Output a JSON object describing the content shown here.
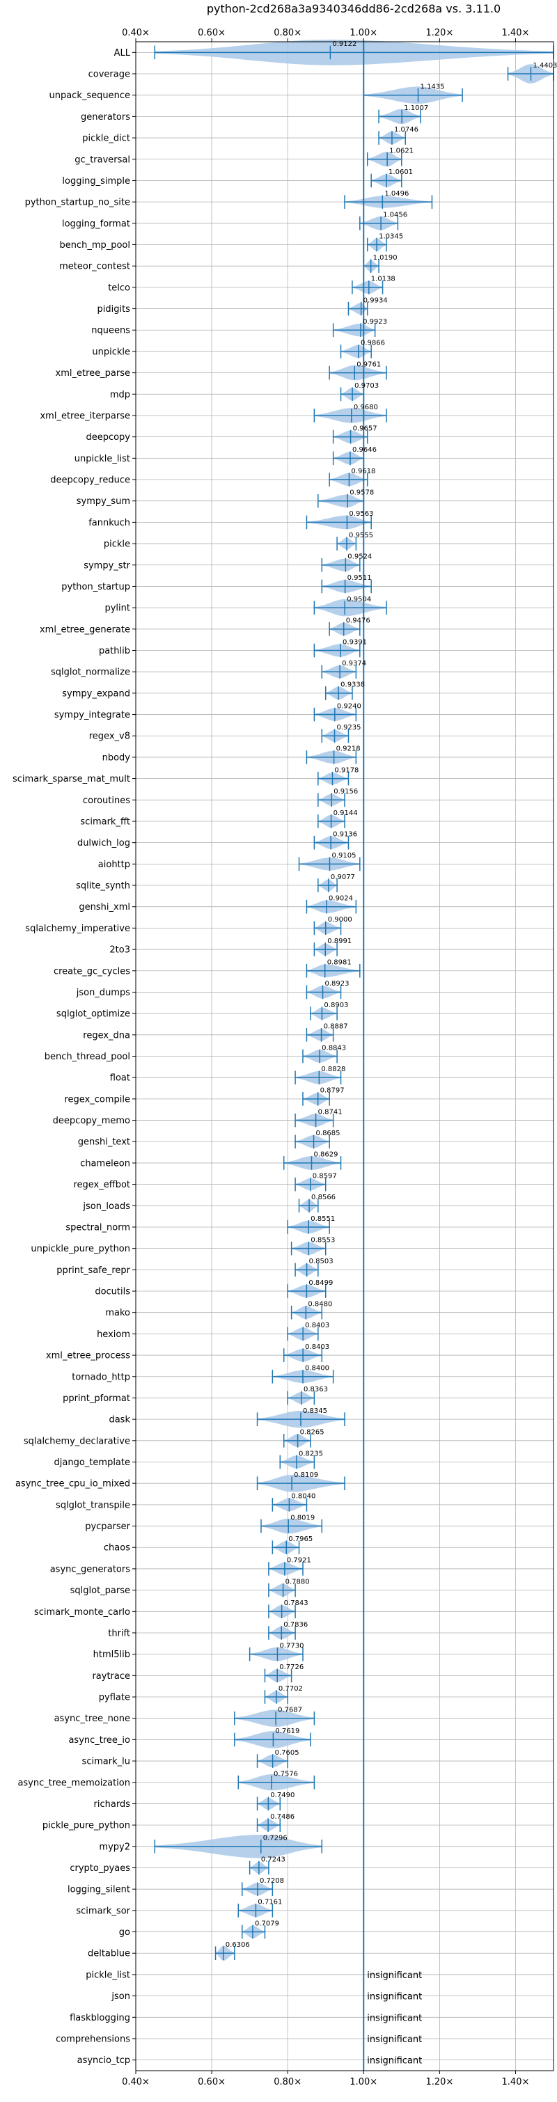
{
  "chart_data": {
    "type": "violin",
    "title": "python-2cd268a3a9340346dd86-2cd268a vs. 3.11.0",
    "xlim": [
      0.4,
      1.5
    ],
    "x_ticks": [
      {
        "value": 0.4,
        "label": "0.40×"
      },
      {
        "value": 0.6,
        "label": "0.60×"
      },
      {
        "value": 0.8,
        "label": "0.80×"
      },
      {
        "value": 1.0,
        "label": "1.00×"
      },
      {
        "value": 1.2,
        "label": "1.20×"
      },
      {
        "value": 1.4,
        "label": "1.40×"
      }
    ],
    "reference_line": 1.0,
    "grid": true,
    "colors": {
      "violin": "#a9c8e8",
      "line": "#1f77b4",
      "grid": "#b0b0b0"
    },
    "insignificant_label": "insignificant",
    "benchmarks": [
      {
        "name": "ALL",
        "value": 0.9122,
        "min": 0.45,
        "max": 1.5,
        "width": 0.6,
        "label": "0.9122"
      },
      {
        "name": "coverage",
        "value": 1.4403,
        "min": 1.38,
        "max": 1.5,
        "width": 0.45,
        "label": "1.4403"
      },
      {
        "name": "unpack_sequence",
        "value": 1.1435,
        "min": 1.0,
        "max": 1.26,
        "width": 0.4,
        "label": "1.1435"
      },
      {
        "name": "generators",
        "value": 1.1007,
        "min": 1.04,
        "max": 1.15,
        "width": 0.35,
        "label": "1.1007"
      },
      {
        "name": "pickle_dict",
        "value": 1.0746,
        "min": 1.04,
        "max": 1.11,
        "width": 0.3,
        "label": "1.0746"
      },
      {
        "name": "gc_traversal",
        "value": 1.0621,
        "min": 1.01,
        "max": 1.1,
        "width": 0.35,
        "label": "1.0621"
      },
      {
        "name": "logging_simple",
        "value": 1.0601,
        "min": 1.02,
        "max": 1.1,
        "width": 0.3,
        "label": "1.0601"
      },
      {
        "name": "python_startup_no_site",
        "value": 1.0496,
        "min": 0.95,
        "max": 1.18,
        "width": 0.28,
        "label": "1.0496"
      },
      {
        "name": "logging_format",
        "value": 1.0456,
        "min": 0.99,
        "max": 1.09,
        "width": 0.32,
        "label": "1.0456"
      },
      {
        "name": "bench_mp_pool",
        "value": 1.0345,
        "min": 1.01,
        "max": 1.06,
        "width": 0.3,
        "label": "1.0345"
      },
      {
        "name": "meteor_contest",
        "value": 1.019,
        "min": 1.0,
        "max": 1.04,
        "width": 0.28,
        "label": "1.0190"
      },
      {
        "name": "telco",
        "value": 1.0138,
        "min": 0.97,
        "max": 1.05,
        "width": 0.3,
        "label": "1.0138"
      },
      {
        "name": "pidigits",
        "value": 0.9934,
        "min": 0.96,
        "max": 1.01,
        "width": 0.28,
        "label": "0.9934"
      },
      {
        "name": "nqueens",
        "value": 0.9923,
        "min": 0.92,
        "max": 1.03,
        "width": 0.3,
        "label": "0.9923"
      },
      {
        "name": "unpickle",
        "value": 0.9866,
        "min": 0.94,
        "max": 1.02,
        "width": 0.3,
        "label": "0.9866"
      },
      {
        "name": "xml_etree_parse",
        "value": 0.9761,
        "min": 0.91,
        "max": 1.06,
        "width": 0.35,
        "label": "0.9761"
      },
      {
        "name": "mdp",
        "value": 0.9703,
        "min": 0.94,
        "max": 1.0,
        "width": 0.3,
        "label": "0.9703"
      },
      {
        "name": "xml_etree_iterparse",
        "value": 0.968,
        "min": 0.87,
        "max": 1.06,
        "width": 0.35,
        "label": "0.9680"
      },
      {
        "name": "deepcopy",
        "value": 0.9657,
        "min": 0.92,
        "max": 1.01,
        "width": 0.3,
        "label": "0.9657"
      },
      {
        "name": "unpickle_list",
        "value": 0.9646,
        "min": 0.92,
        "max": 1.0,
        "width": 0.3,
        "label": "0.9646"
      },
      {
        "name": "deepcopy_reduce",
        "value": 0.9618,
        "min": 0.91,
        "max": 1.01,
        "width": 0.3,
        "label": "0.9618"
      },
      {
        "name": "sympy_sum",
        "value": 0.9578,
        "min": 0.88,
        "max": 1.0,
        "width": 0.3,
        "label": "0.9578"
      },
      {
        "name": "fannkuch",
        "value": 0.9563,
        "min": 0.85,
        "max": 1.02,
        "width": 0.32,
        "label": "0.9563"
      },
      {
        "name": "pickle",
        "value": 0.9555,
        "min": 0.93,
        "max": 0.98,
        "width": 0.28,
        "label": "0.9555"
      },
      {
        "name": "sympy_str",
        "value": 0.9524,
        "min": 0.89,
        "max": 0.99,
        "width": 0.3,
        "label": "0.9524"
      },
      {
        "name": "python_startup",
        "value": 0.9511,
        "min": 0.89,
        "max": 1.02,
        "width": 0.3,
        "label": "0.9511"
      },
      {
        "name": "pylint",
        "value": 0.9504,
        "min": 0.87,
        "max": 1.06,
        "width": 0.4,
        "label": "0.9504"
      },
      {
        "name": "xml_etree_generate",
        "value": 0.9476,
        "min": 0.91,
        "max": 0.99,
        "width": 0.3,
        "label": "0.9476"
      },
      {
        "name": "pathlib",
        "value": 0.9391,
        "min": 0.87,
        "max": 0.99,
        "width": 0.3,
        "label": "0.9391"
      },
      {
        "name": "sqlglot_normalize",
        "value": 0.9374,
        "min": 0.89,
        "max": 0.98,
        "width": 0.3,
        "label": "0.9374"
      },
      {
        "name": "sympy_expand",
        "value": 0.9338,
        "min": 0.9,
        "max": 0.97,
        "width": 0.3,
        "label": "0.9338"
      },
      {
        "name": "sympy_integrate",
        "value": 0.924,
        "min": 0.87,
        "max": 0.98,
        "width": 0.3,
        "label": "0.9240"
      },
      {
        "name": "regex_v8",
        "value": 0.9235,
        "min": 0.89,
        "max": 0.96,
        "width": 0.28,
        "label": "0.9235"
      },
      {
        "name": "nbody",
        "value": 0.9218,
        "min": 0.85,
        "max": 0.98,
        "width": 0.3,
        "label": "0.9218"
      },
      {
        "name": "scimark_sparse_mat_mult",
        "value": 0.9178,
        "min": 0.88,
        "max": 0.96,
        "width": 0.28,
        "label": "0.9178"
      },
      {
        "name": "coroutines",
        "value": 0.9156,
        "min": 0.88,
        "max": 0.95,
        "width": 0.28,
        "label": "0.9156"
      },
      {
        "name": "scimark_fft",
        "value": 0.9144,
        "min": 0.88,
        "max": 0.95,
        "width": 0.3,
        "label": "0.9144"
      },
      {
        "name": "dulwich_log",
        "value": 0.9136,
        "min": 0.87,
        "max": 0.96,
        "width": 0.3,
        "label": "0.9136"
      },
      {
        "name": "aiohttp",
        "value": 0.9105,
        "min": 0.83,
        "max": 0.99,
        "width": 0.3,
        "label": "0.9105"
      },
      {
        "name": "sqlite_synth",
        "value": 0.9077,
        "min": 0.88,
        "max": 0.93,
        "width": 0.28,
        "label": "0.9077"
      },
      {
        "name": "genshi_xml",
        "value": 0.9024,
        "min": 0.85,
        "max": 0.98,
        "width": 0.3,
        "label": "0.9024"
      },
      {
        "name": "sqlalchemy_imperative",
        "value": 0.9,
        "min": 0.87,
        "max": 0.94,
        "width": 0.28,
        "label": "0.9000"
      },
      {
        "name": "2to3",
        "value": 0.8991,
        "min": 0.87,
        "max": 0.93,
        "width": 0.28,
        "label": "0.8991"
      },
      {
        "name": "create_gc_cycles",
        "value": 0.8981,
        "min": 0.85,
        "max": 0.99,
        "width": 0.3,
        "label": "0.8981"
      },
      {
        "name": "json_dumps",
        "value": 0.8923,
        "min": 0.85,
        "max": 0.94,
        "width": 0.3,
        "label": "0.8923"
      },
      {
        "name": "sqlglot_optimize",
        "value": 0.8903,
        "min": 0.86,
        "max": 0.93,
        "width": 0.28,
        "label": "0.8903"
      },
      {
        "name": "regex_dna",
        "value": 0.8887,
        "min": 0.85,
        "max": 0.92,
        "width": 0.28,
        "label": "0.8887"
      },
      {
        "name": "bench_thread_pool",
        "value": 0.8843,
        "min": 0.84,
        "max": 0.93,
        "width": 0.3,
        "label": "0.8843"
      },
      {
        "name": "float",
        "value": 0.8828,
        "min": 0.82,
        "max": 0.94,
        "width": 0.3,
        "label": "0.8828"
      },
      {
        "name": "regex_compile",
        "value": 0.8797,
        "min": 0.84,
        "max": 0.91,
        "width": 0.28,
        "label": "0.8797"
      },
      {
        "name": "deepcopy_memo",
        "value": 0.8741,
        "min": 0.82,
        "max": 0.92,
        "width": 0.3,
        "label": "0.8741"
      },
      {
        "name": "genshi_text",
        "value": 0.8685,
        "min": 0.82,
        "max": 0.91,
        "width": 0.3,
        "label": "0.8685"
      },
      {
        "name": "chameleon",
        "value": 0.8629,
        "min": 0.79,
        "max": 0.94,
        "width": 0.32,
        "label": "0.8629"
      },
      {
        "name": "regex_effbot",
        "value": 0.8597,
        "min": 0.82,
        "max": 0.9,
        "width": 0.28,
        "label": "0.8597"
      },
      {
        "name": "json_loads",
        "value": 0.8566,
        "min": 0.83,
        "max": 0.88,
        "width": 0.28,
        "label": "0.8566"
      },
      {
        "name": "spectral_norm",
        "value": 0.8551,
        "min": 0.8,
        "max": 0.91,
        "width": 0.3,
        "label": "0.8551"
      },
      {
        "name": "unpickle_pure_python",
        "value": 0.8553,
        "min": 0.81,
        "max": 0.9,
        "width": 0.3,
        "label": "0.8553"
      },
      {
        "name": "pprint_safe_repr",
        "value": 0.8503,
        "min": 0.82,
        "max": 0.88,
        "width": 0.28,
        "label": "0.8503"
      },
      {
        "name": "docutils",
        "value": 0.8499,
        "min": 0.8,
        "max": 0.9,
        "width": 0.3,
        "label": "0.8499"
      },
      {
        "name": "mako",
        "value": 0.848,
        "min": 0.81,
        "max": 0.89,
        "width": 0.3,
        "label": "0.8480"
      },
      {
        "name": "hexiom",
        "value": 0.8403,
        "min": 0.8,
        "max": 0.88,
        "width": 0.3,
        "label": "0.8403"
      },
      {
        "name": "xml_etree_process",
        "value": 0.8403,
        "min": 0.79,
        "max": 0.89,
        "width": 0.3,
        "label": "0.8403"
      },
      {
        "name": "tornado_http",
        "value": 0.84,
        "min": 0.76,
        "max": 0.92,
        "width": 0.3,
        "label": "0.8400"
      },
      {
        "name": "pprint_pformat",
        "value": 0.8363,
        "min": 0.8,
        "max": 0.87,
        "width": 0.28,
        "label": "0.8363"
      },
      {
        "name": "dask",
        "value": 0.8345,
        "min": 0.72,
        "max": 0.95,
        "width": 0.4,
        "label": "0.8345"
      },
      {
        "name": "sqlalchemy_declarative",
        "value": 0.8265,
        "min": 0.79,
        "max": 0.86,
        "width": 0.3,
        "label": "0.8265"
      },
      {
        "name": "django_template",
        "value": 0.8235,
        "min": 0.78,
        "max": 0.87,
        "width": 0.3,
        "label": "0.8235"
      },
      {
        "name": "async_tree_cpu_io_mixed",
        "value": 0.8109,
        "min": 0.72,
        "max": 0.95,
        "width": 0.4,
        "label": "0.8109"
      },
      {
        "name": "sqlglot_transpile",
        "value": 0.804,
        "min": 0.76,
        "max": 0.85,
        "width": 0.3,
        "label": "0.8040"
      },
      {
        "name": "pycparser",
        "value": 0.8019,
        "min": 0.73,
        "max": 0.89,
        "width": 0.35,
        "label": "0.8019"
      },
      {
        "name": "chaos",
        "value": 0.7965,
        "min": 0.76,
        "max": 0.83,
        "width": 0.3,
        "label": "0.7965"
      },
      {
        "name": "async_generators",
        "value": 0.7921,
        "min": 0.75,
        "max": 0.84,
        "width": 0.3,
        "label": "0.7921"
      },
      {
        "name": "sqlglot_parse",
        "value": 0.788,
        "min": 0.75,
        "max": 0.82,
        "width": 0.3,
        "label": "0.7880"
      },
      {
        "name": "scimark_monte_carlo",
        "value": 0.7843,
        "min": 0.75,
        "max": 0.82,
        "width": 0.3,
        "label": "0.7843"
      },
      {
        "name": "thrift",
        "value": 0.7836,
        "min": 0.75,
        "max": 0.82,
        "width": 0.3,
        "label": "0.7836"
      },
      {
        "name": "html5lib",
        "value": 0.773,
        "min": 0.7,
        "max": 0.84,
        "width": 0.32,
        "label": "0.7730"
      },
      {
        "name": "raytrace",
        "value": 0.7726,
        "min": 0.74,
        "max": 0.81,
        "width": 0.3,
        "label": "0.7726"
      },
      {
        "name": "pyflate",
        "value": 0.7702,
        "min": 0.74,
        "max": 0.8,
        "width": 0.28,
        "label": "0.7702"
      },
      {
        "name": "async_tree_none",
        "value": 0.7687,
        "min": 0.66,
        "max": 0.87,
        "width": 0.4,
        "label": "0.7687"
      },
      {
        "name": "async_tree_io",
        "value": 0.7619,
        "min": 0.66,
        "max": 0.86,
        "width": 0.4,
        "label": "0.7619"
      },
      {
        "name": "scimark_lu",
        "value": 0.7605,
        "min": 0.72,
        "max": 0.8,
        "width": 0.3,
        "label": "0.7605"
      },
      {
        "name": "async_tree_memoization",
        "value": 0.7576,
        "min": 0.67,
        "max": 0.87,
        "width": 0.38,
        "label": "0.7576"
      },
      {
        "name": "richards",
        "value": 0.749,
        "min": 0.72,
        "max": 0.78,
        "width": 0.28,
        "label": "0.7490"
      },
      {
        "name": "pickle_pure_python",
        "value": 0.7486,
        "min": 0.72,
        "max": 0.78,
        "width": 0.28,
        "label": "0.7486"
      },
      {
        "name": "mypy2",
        "value": 0.7296,
        "min": 0.45,
        "max": 0.89,
        "width": 0.55,
        "label": "0.7296"
      },
      {
        "name": "crypto_pyaes",
        "value": 0.7243,
        "min": 0.7,
        "max": 0.75,
        "width": 0.28,
        "label": "0.7243"
      },
      {
        "name": "logging_silent",
        "value": 0.7208,
        "min": 0.68,
        "max": 0.76,
        "width": 0.3,
        "label": "0.7208"
      },
      {
        "name": "scimark_sor",
        "value": 0.7161,
        "min": 0.67,
        "max": 0.76,
        "width": 0.3,
        "label": "0.7161"
      },
      {
        "name": "go",
        "value": 0.7079,
        "min": 0.68,
        "max": 0.74,
        "width": 0.3,
        "label": "0.7079"
      },
      {
        "name": "deltablue",
        "value": 0.6306,
        "min": 0.61,
        "max": 0.66,
        "width": 0.35,
        "label": "0.6306"
      },
      {
        "name": "pickle_list",
        "value": null,
        "label": ""
      },
      {
        "name": "json",
        "value": null,
        "label": ""
      },
      {
        "name": "flaskblogging",
        "value": null,
        "label": ""
      },
      {
        "name": "comprehensions",
        "value": null,
        "label": ""
      },
      {
        "name": "asyncio_tcp",
        "value": null,
        "label": ""
      }
    ]
  }
}
